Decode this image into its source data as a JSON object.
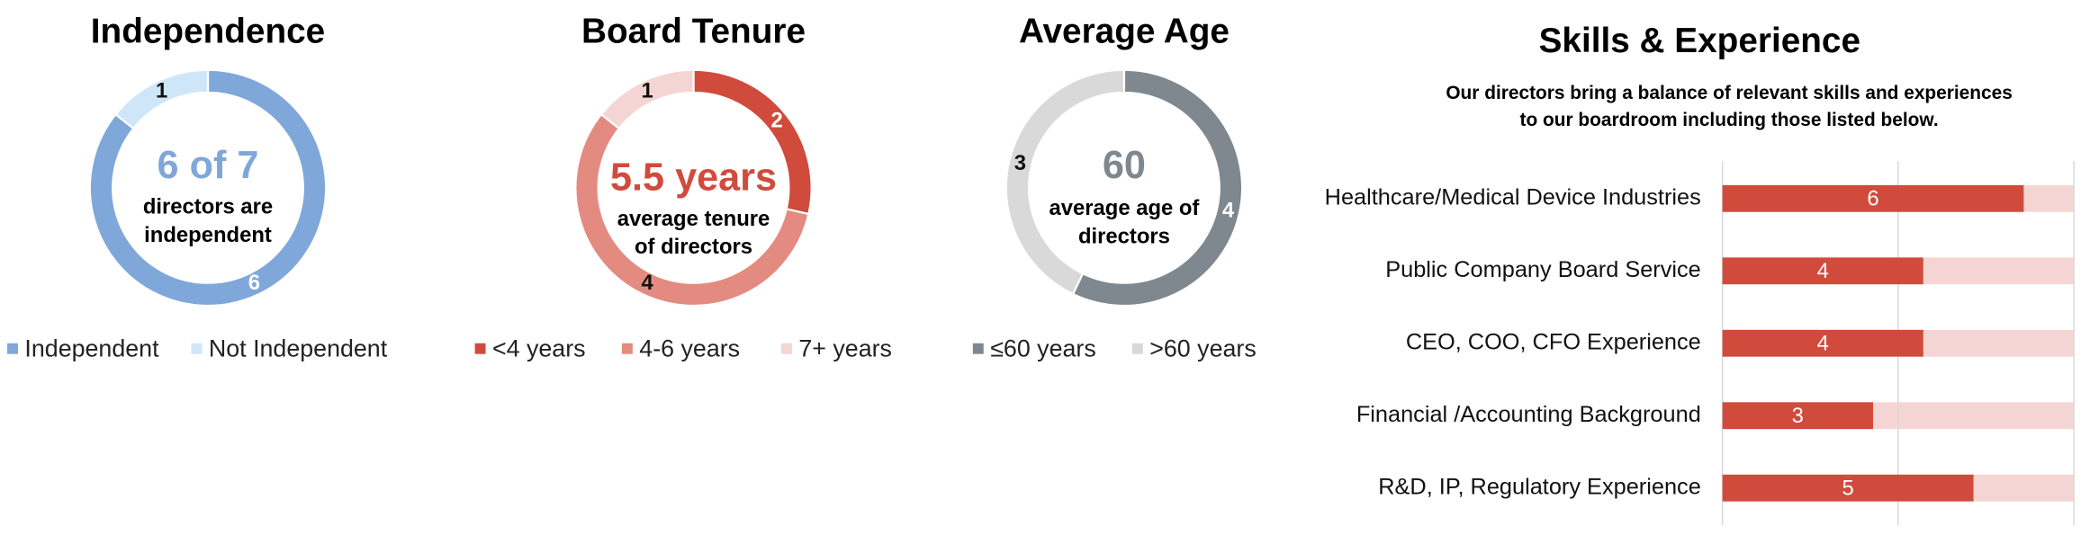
{
  "chart_data": [
    {
      "type": "donut",
      "title": "Independence",
      "center_text": [
        "6 of 7",
        "directors are",
        "independent"
      ],
      "center_color": "#7fa7d9",
      "categories": [
        "Independent",
        "Not Independent"
      ],
      "values": [
        6,
        1
      ],
      "colors": [
        "#7fa7d9",
        "#cfe6f8"
      ],
      "label_colors": [
        "#ffffff",
        "#111111"
      ]
    },
    {
      "type": "donut",
      "title": "Board Tenure",
      "center_text": [
        "5.5 years",
        "average tenure",
        "of directors"
      ],
      "center_color": "#d14b3c",
      "categories": [
        "<4 years",
        "4-6 years",
        "7+ years"
      ],
      "values": [
        2,
        4,
        1
      ],
      "colors": [
        "#d14b3c",
        "#e38b80",
        "#f5d5d3"
      ],
      "label_colors": [
        "#ffffff",
        "#111111",
        "#111111"
      ]
    },
    {
      "type": "donut",
      "title": "Average Age",
      "center_text": [
        "60",
        "average age of",
        "directors"
      ],
      "center_color": "#7f878f",
      "categories": [
        "≤60 years",
        ">60 years"
      ],
      "values": [
        4,
        3
      ],
      "colors": [
        "#7f878f",
        "#d9d9d9"
      ],
      "label_colors": [
        "#ffffff",
        "#111111"
      ]
    },
    {
      "type": "hbar",
      "title": "Skills & Experience",
      "subtitle": [
        "Our directors bring a balance of relevant skills and experiences",
        "to our boardroom including those listed below."
      ],
      "categories": [
        "Healthcare/Medical Device Industries",
        "Public Company Board Service",
        "CEO, COO, CFO Experience",
        "Financial /Accounting Background",
        "R&D, IP,  Regulatory Experience"
      ],
      "values": [
        6,
        4,
        4,
        3,
        5
      ],
      "color": "#d14b3c",
      "background_color": "#f5d5d3",
      "xlim": [
        0,
        7
      ],
      "xticks": [
        0,
        3.5,
        7
      ],
      "grid": true
    }
  ]
}
